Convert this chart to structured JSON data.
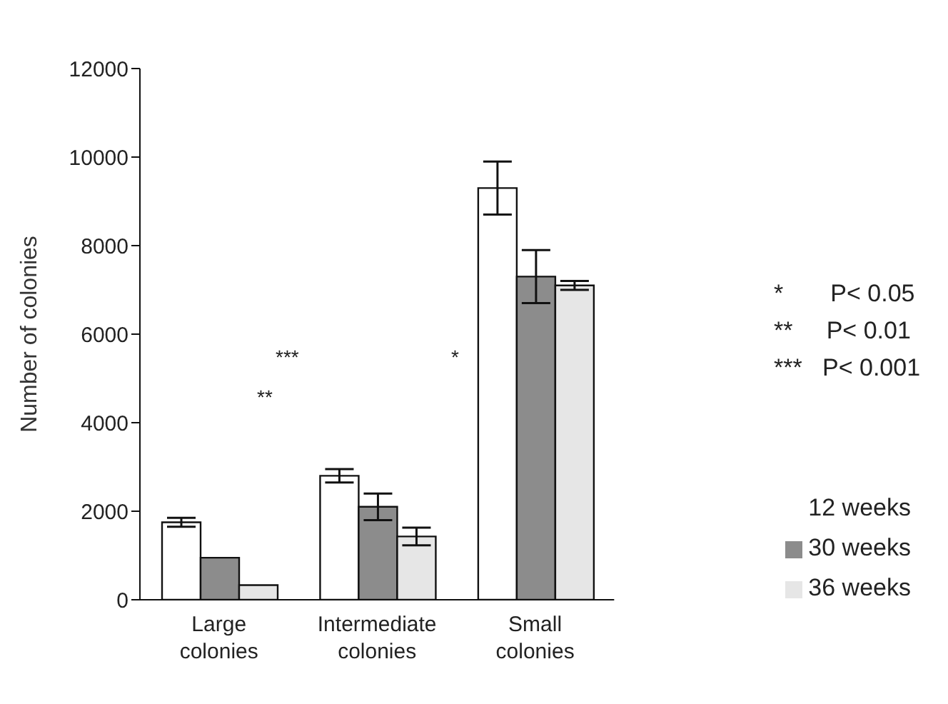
{
  "chart_data": {
    "type": "bar",
    "ylabel": "Number of colonies",
    "categories": [
      "Large\ncolonies",
      "Intermediate\ncolonies",
      "Small\ncolonies"
    ],
    "series": [
      {
        "name": "12 weeks",
        "color": "#ffffff",
        "values": [
          1750,
          2800,
          9300
        ],
        "errors": [
          100,
          150,
          600
        ]
      },
      {
        "name": "30 weeks",
        "color": "#8c8c8c",
        "values": [
          950,
          2100,
          7300
        ],
        "errors": [
          null,
          300,
          600
        ]
      },
      {
        "name": "36 weeks",
        "color": "#e6e6e6",
        "values": [
          330,
          1430,
          7100
        ],
        "errors": [
          null,
          200,
          100
        ]
      }
    ],
    "ylim": [
      0,
      12000
    ],
    "yticks": [
      0,
      2000,
      4000,
      6000,
      8000,
      10000,
      12000
    ],
    "legend": "bottom right",
    "grid": false,
    "annotations": [
      "**",
      "***",
      "*",
      "*       P< 0.05",
      "**     P< 0.01",
      "***   P< 0.001"
    ]
  }
}
